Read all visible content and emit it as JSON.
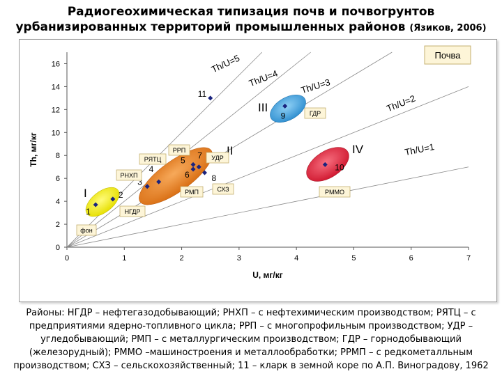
{
  "title": {
    "line1": "Радиогеохимическая типизация почв и почвогрунтов",
    "line2_main": "урбанизированных территорий промышленных районов",
    "line2_ref": "(Язиков, 2006)"
  },
  "chart_data": {
    "type": "scatter",
    "xlabel": "U, мг/кг",
    "ylabel": "Th, мг/кг",
    "xlim": [
      0,
      7
    ],
    "ylim": [
      0,
      17
    ],
    "xticks": [
      0,
      1,
      2,
      3,
      4,
      5,
      6,
      7
    ],
    "yticks": [
      0,
      2,
      4,
      6,
      8,
      10,
      12,
      14,
      16
    ],
    "grid": false,
    "legend_box": "Почва",
    "points": [
      {
        "x": 0.5,
        "y": 3.7,
        "num": "1"
      },
      {
        "x": 0.8,
        "y": 4.2,
        "num": "2"
      },
      {
        "x": 1.4,
        "y": 5.3,
        "num": "3"
      },
      {
        "x": 1.6,
        "y": 5.7,
        "num": "4"
      },
      {
        "x": 2.2,
        "y": 7.2,
        "num": "5"
      },
      {
        "x": 2.2,
        "y": 6.8,
        "num": "6"
      },
      {
        "x": 2.3,
        "y": 7.0,
        "num": "7"
      },
      {
        "x": 2.4,
        "y": 6.5,
        "num": "8"
      },
      {
        "x": 3.8,
        "y": 12.3,
        "num": "9"
      },
      {
        "x": 4.5,
        "y": 7.2,
        "num": "10"
      },
      {
        "x": 2.5,
        "y": 13.0,
        "num": "11"
      }
    ],
    "ratio_lines": [
      {
        "ratio": 5,
        "label": "Th/U=5"
      },
      {
        "ratio": 4,
        "label": "Th/U=4"
      },
      {
        "ratio": 3,
        "label": "Th/U=3"
      },
      {
        "ratio": 2,
        "label": "Th/U=2"
      },
      {
        "ratio": 1,
        "label": "Th/U=1"
      }
    ],
    "groups": [
      {
        "roman": "I",
        "color": "#f6f200"
      },
      {
        "roman": "II",
        "color": "#e8821e"
      },
      {
        "roman": "III",
        "color": "#4aa8e0"
      },
      {
        "roman": "IV",
        "color": "#e8283c"
      }
    ],
    "district_labels": [
      "НГДР",
      "РНХП",
      "РЯТЦ",
      "РРП",
      "УДР",
      "РМП",
      "СХЗ",
      "ГДР",
      "РММО",
      "фон"
    ]
  },
  "legend_lines": [
    "Районы: НГДР – нефтегазодобывающий; РНХП – с нефтехимическим производством; РЯТЦ – с",
    "предприятиями ядерно-топливного цикла; РРП – с многопрофильным производством; УДР –",
    "угледобывающий; РМП – с металлургическим производством; ГДР – горнодобывающий",
    "(железорудный); РММО –машиностроения и металлообработки; РРМП – с редкометалльным",
    "производством; СХЗ – сельскохозяйственный; 11 – кларк в земной коре по А.П. Виноградову, 1962"
  ]
}
